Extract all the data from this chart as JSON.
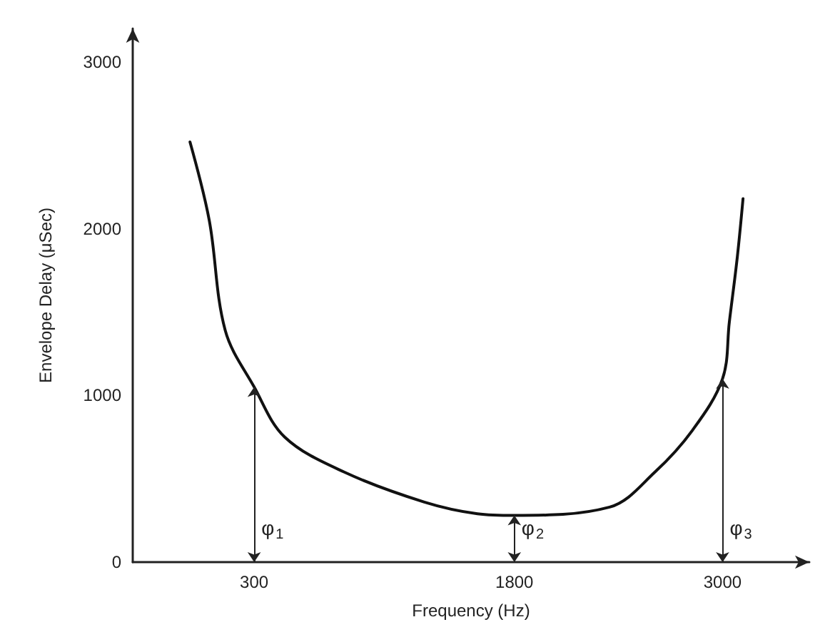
{
  "chart_data": {
    "type": "line",
    "xlabel": "Frequency (Hz)",
    "ylabel": "Envelope Delay (μSec)",
    "xlim": [
      -400,
      3500
    ],
    "xticks": [
      300,
      1800,
      3000
    ],
    "ylim": [
      0,
      3200
    ],
    "yticks": [
      0,
      1000,
      2000,
      3000
    ],
    "grid": false,
    "marker": "none",
    "line_style": "solid",
    "series": [
      {
        "color": "#111111",
        "x": [
          -70,
          41,
          133,
          300,
          476,
          819,
          1281,
          1587,
          1800,
          2349,
          2610,
          2826,
          3000,
          3039,
          3085,
          3118
        ],
        "values": [
          2520,
          2050,
          1390,
          1050,
          750,
          540,
          360,
          290,
          280,
          330,
          540,
          790,
          1100,
          1440,
          1830,
          2180
        ]
      }
    ],
    "annotations": [
      "φ$_{1}$",
      "φ$_{2}$",
      "φ$_{3}$"
    ]
  }
}
